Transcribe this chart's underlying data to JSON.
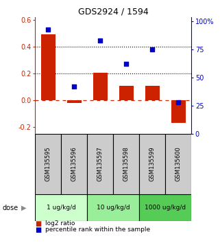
{
  "title": "GDS2924 / 1594",
  "samples": [
    "GSM135595",
    "GSM135596",
    "GSM135597",
    "GSM135598",
    "GSM135599",
    "GSM135600"
  ],
  "log2_ratio": [
    0.49,
    -0.02,
    0.205,
    0.105,
    0.105,
    -0.17
  ],
  "percentile_rank": [
    93,
    42,
    83,
    62,
    75,
    28
  ],
  "bar_color": "#cc2200",
  "dot_color": "#0000cc",
  "left_ylim": [
    -0.25,
    0.62
  ],
  "right_ylim": [
    0,
    104
  ],
  "left_yticks": [
    -0.2,
    0.0,
    0.2,
    0.4,
    0.6
  ],
  "right_yticks": [
    0,
    25,
    50,
    75,
    100
  ],
  "right_yticklabels": [
    "0",
    "25",
    "50",
    "75",
    "100%"
  ],
  "hline_y": [
    0.2,
    0.4
  ],
  "zero_line_y": 0.0,
  "dose_groups": [
    {
      "label": "1 ug/kg/d",
      "samples": [
        0,
        1
      ],
      "color": "#ccffcc"
    },
    {
      "label": "10 ug/kg/d",
      "samples": [
        2,
        3
      ],
      "color": "#99ee99"
    },
    {
      "label": "1000 ug/kg/d",
      "samples": [
        4,
        5
      ],
      "color": "#55cc55"
    }
  ],
  "dose_label": "dose",
  "legend_bar_label": "log2 ratio",
  "legend_dot_label": "percentile rank within the sample",
  "background_color": "#ffffff",
  "plot_bg_color": "#ffffff",
  "label_area_color": "#cccccc",
  "bar_width": 0.55
}
